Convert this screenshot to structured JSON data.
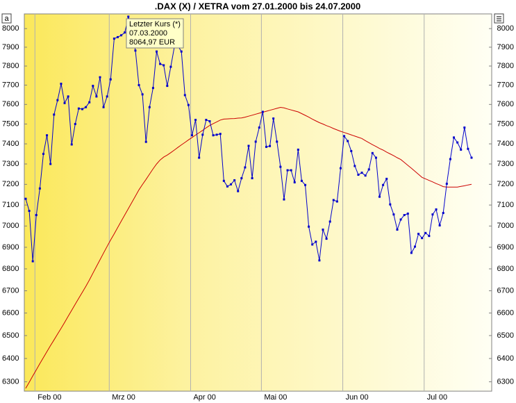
{
  "chart_data": {
    "type": "line",
    "title": ".DAX (X) / XETRA vom 27.01.2000 bis 24.07.2000",
    "annotation": [
      "Letzter Kurs (*)",
      "07.03.2000",
      "8064,97 EUR"
    ],
    "corner_button": "a",
    "log_scale": true,
    "ylim": [
      6260,
      8080
    ],
    "yticks": [
      6300,
      6400,
      6500,
      6600,
      6700,
      6800,
      6900,
      7000,
      7100,
      7200,
      7300,
      7400,
      7500,
      7600,
      7700,
      7800,
      7900,
      8000
    ],
    "categories": [
      null,
      null,
      null,
      "Feb 00",
      null,
      null,
      null,
      null,
      null,
      null,
      null,
      null,
      null,
      null,
      null,
      null,
      null,
      null,
      null,
      null,
      null,
      null,
      null,
      null,
      "Mrz 00",
      null,
      null,
      null,
      null,
      null,
      null,
      null,
      null,
      null,
      null,
      null,
      null,
      null,
      null,
      null,
      null,
      null,
      null,
      null,
      null,
      null,
      null,
      "Apr 00",
      null,
      null,
      null,
      null,
      null,
      null,
      null,
      null,
      null,
      null,
      null,
      null,
      null,
      null,
      null,
      null,
      null,
      null,
      null,
      "Mai 00",
      null,
      null,
      null,
      null,
      null,
      null,
      null,
      null,
      null,
      null,
      null,
      null,
      null,
      null,
      null,
      null,
      null,
      null,
      null,
      null,
      null,
      null,
      "Jun 00",
      null,
      null,
      null,
      null,
      null,
      null,
      null,
      null,
      null,
      null,
      null,
      null,
      null,
      null,
      null,
      null,
      null,
      null,
      null,
      null,
      null,
      null,
      "Jul 00",
      null,
      null,
      null,
      null,
      null,
      null,
      null,
      null,
      null,
      null,
      null,
      null,
      null
    ],
    "series": [
      {
        "color": "#0000cc",
        "markers": true,
        "values": [
          7130,
          7072,
          6835,
          7052,
          7180,
          7350,
          7443,
          7300,
          7548,
          7622,
          7707,
          7607,
          7641,
          7397,
          7500,
          7579,
          7576,
          7586,
          7611,
          7696,
          7641,
          7741,
          7586,
          7641,
          7730,
          7946,
          7954,
          7964,
          7979,
          8064.97,
          7989,
          7882,
          7700,
          7652,
          7410,
          7586,
          7685,
          7877,
          7811,
          7804,
          7696,
          7796,
          7900,
          7907,
          7877,
          7648,
          7597,
          7443,
          7521,
          7331,
          7446,
          7521,
          7514,
          7443,
          7446,
          7450,
          7217,
          7190,
          7200,
          7220,
          7167,
          7230,
          7283,
          7390,
          7230,
          7411,
          7482,
          7562,
          7385,
          7389,
          7528,
          7411,
          7286,
          7127,
          7269,
          7269,
          7210,
          7371,
          7217,
          7197,
          6997,
          6913,
          6926,
          6839,
          6983,
          6940,
          7021,
          7124,
          7117,
          7279,
          7439,
          7414,
          7364,
          7290,
          7247,
          7257,
          7243,
          7273,
          7354,
          7331,
          7140,
          7197,
          7227,
          7103,
          7055,
          6983,
          7031,
          7052,
          7059,
          6874,
          6903,
          6963,
          6943,
          6967,
          6953,
          7055,
          7079,
          7003,
          7062,
          7203,
          7324,
          7432,
          7407,
          7371,
          7482,
          7375,
          7331
        ]
      },
      {
        "color": "#cc0000",
        "markers": false,
        "values": [
          6272,
          6298,
          6325,
          6351,
          6378,
          6404,
          6430,
          6456,
          6481,
          6507,
          6532,
          6558,
          6585,
          6612,
          6639,
          6666,
          6693,
          6720,
          6749,
          6780,
          6811,
          6842,
          6873,
          6904,
          6934,
          6963,
          6993,
          7023,
          7053,
          7083,
          7113,
          7143,
          7173,
          7199,
          7224,
          7250,
          7276,
          7300,
          7320,
          7334,
          7344,
          7356,
          7369,
          7382,
          7395,
          7407,
          7420,
          7432,
          7444,
          7456,
          7468,
          7481,
          7493,
          7502,
          7511,
          7520,
          7525,
          7526,
          7527,
          7528,
          7530,
          7531,
          7535,
          7540,
          7545,
          7550,
          7555,
          7560,
          7565,
          7570,
          7575,
          7580,
          7585,
          7582,
          7577,
          7572,
          7567,
          7562,
          7553,
          7544,
          7535,
          7525,
          7516,
          7507,
          7500,
          7492,
          7485,
          7477,
          7470,
          7463,
          7457,
          7451,
          7445,
          7439,
          7433,
          7427,
          7416,
          7406,
          7396,
          7387,
          7377,
          7369,
          7359,
          7350,
          7341,
          7331,
          7322,
          7308,
          7293,
          7279,
          7264,
          7249,
          7234,
          7227,
          7219,
          7212,
          7204,
          7197,
          7189,
          7187,
          7187,
          7187,
          7187,
          7190,
          7193,
          7197,
          7200
        ]
      }
    ]
  }
}
